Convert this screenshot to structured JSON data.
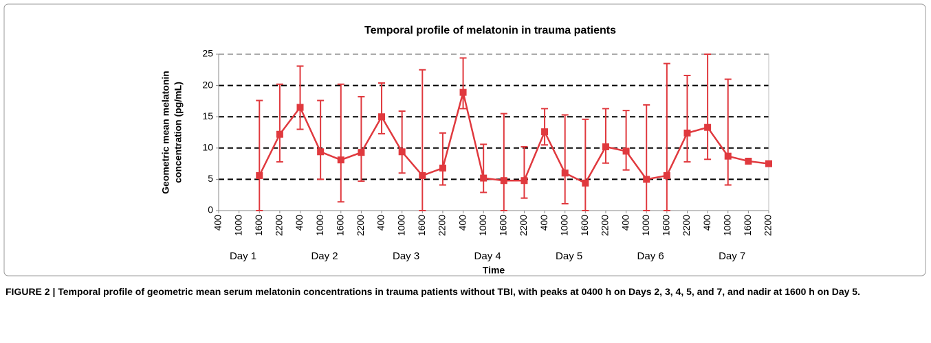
{
  "chart_data": {
    "type": "line",
    "title": "Temporal profile of melatonin in trauma patients",
    "y_label": [
      "Geometric mean melatonin",
      "concentration (pg/mL)"
    ],
    "x_label": "Time",
    "categories": [
      "400",
      "1000",
      "1600",
      "2200",
      "400",
      "1000",
      "1600",
      "2200",
      "400",
      "1000",
      "1600",
      "2200",
      "400",
      "1000",
      "1600",
      "2200",
      "400",
      "1000",
      "1600",
      "2200",
      "400",
      "1000",
      "1600",
      "2200",
      "400",
      "1000",
      "1600",
      "2200"
    ],
    "groups": [
      "Day 1",
      "Day 2",
      "Day 3",
      "Day 4",
      "Day 5",
      "Day 6",
      "Day 7"
    ],
    "series": [
      {
        "color": "#e0393e",
        "values": [
          null,
          null,
          5.6,
          12.2,
          16.5,
          9.4,
          8.1,
          9.3,
          15.0,
          9.4,
          5.6,
          6.8,
          18.9,
          5.2,
          4.8,
          4.8,
          12.6,
          6.0,
          4.4,
          10.2,
          9.5,
          5.0,
          5.6,
          12.4,
          13.3,
          8.7,
          7.9,
          7.5
        ],
        "upper": [
          null,
          null,
          17.6,
          20.2,
          23.1,
          17.6,
          20.2,
          18.2,
          20.4,
          15.9,
          22.5,
          12.4,
          24.4,
          10.6,
          15.5,
          10.2,
          16.3,
          15.3,
          14.6,
          16.3,
          16.0,
          16.9,
          23.5,
          21.6,
          25,
          21.0,
          null,
          null
        ],
        "lower": [
          null,
          null,
          0,
          7.8,
          13.0,
          5.0,
          1.4,
          4.7,
          12.3,
          6.0,
          0,
          4.1,
          16.3,
          2.9,
          0,
          2.0,
          10.5,
          1.1,
          0,
          7.6,
          6.5,
          0,
          0,
          7.8,
          8.2,
          4.1,
          null,
          null
        ]
      }
    ],
    "ylim": [
      0,
      25
    ],
    "yticks": [
      0,
      5,
      10,
      15,
      20,
      25
    ],
    "grid": true
  },
  "caption": "FIGURE 2 | Temporal profile of geometric mean serum melatonin concentrations in trauma patients without TBI, with peaks at 0400 h on Days 2, 3, 4, 5, and 7, and nadir at 1600 h on Day 5."
}
